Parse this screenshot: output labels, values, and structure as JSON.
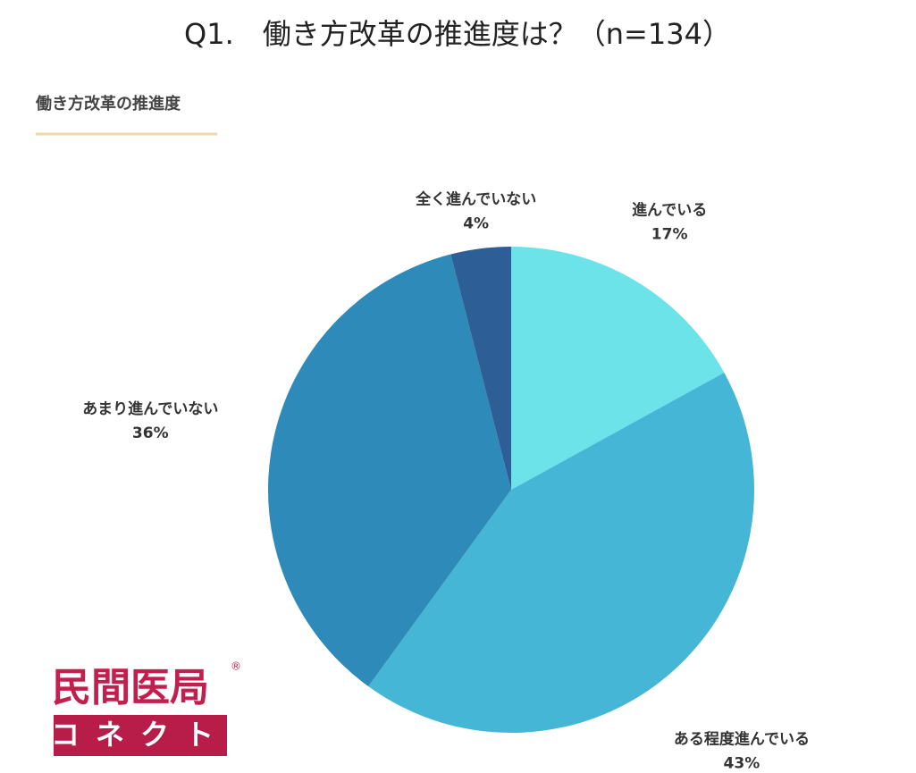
{
  "chart_data": {
    "type": "pie",
    "title": "Q1.　働き方改革の推進度は？（n=134）",
    "subtitle": "働き方改革の推進度",
    "categories": [
      "進んでいる",
      "ある程度進んでいる",
      "あまり進んでいない",
      "全く進んでいない"
    ],
    "values": [
      17,
      43,
      36,
      4
    ],
    "value_labels": [
      "17%",
      "43%",
      "36%",
      "4%"
    ],
    "colors": [
      "#6ce3e8",
      "#45b6d6",
      "#2e8ab8",
      "#2d5f96"
    ]
  },
  "logo": {
    "name": "民間医局",
    "mark": "®",
    "sub": "コネクト"
  }
}
